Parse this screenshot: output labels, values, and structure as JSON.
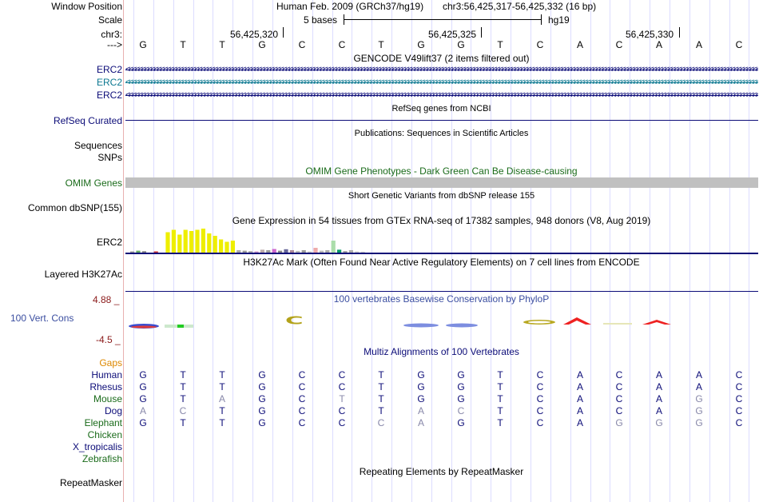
{
  "header": {
    "window_position_label": "Window Position",
    "scale_label": "Scale",
    "chrom_label": "chr3:",
    "strand_label": "--->",
    "assembly": "Human Feb. 2009 (GRCh37/hg19)",
    "position": "chr3:56,425,317-56,425,332 (16 bp)",
    "scale_text": "5 bases",
    "db": "hg19",
    "coords": [
      "56,425,320",
      "56,425,325",
      "56,425,330"
    ]
  },
  "sequence": [
    "G",
    "T",
    "T",
    "G",
    "C",
    "C",
    "T",
    "G",
    "G",
    "T",
    "C",
    "A",
    "C",
    "A",
    "A",
    "C"
  ],
  "tracks": {
    "gencode": {
      "title": "GENCODE V49lift37 (2 items filtered out)",
      "items": [
        {
          "label": "ERC2",
          "color": "#0c0c78"
        },
        {
          "label": "ERC2",
          "color": "#0c7891"
        },
        {
          "label": "ERC2",
          "color": "#0c0c78"
        }
      ]
    },
    "refseq": {
      "title": "RefSeq genes from NCBI",
      "label": "RefSeq Curated"
    },
    "publications": {
      "title": "Publications: Sequences in Scientific Articles",
      "labels": [
        "Sequences",
        "SNPs"
      ]
    },
    "omim": {
      "title": "OMIM Gene Phenotypes - Dark Green Can Be Disease-causing",
      "label": "OMIM Genes"
    },
    "dbsnp": {
      "title": "Short Genetic Variants from dbSNP release 155",
      "label": "Common dbSNP(155)"
    },
    "gtex": {
      "title": "Gene Expression in 54 tissues from GTEx RNA-seq of 17382 samples, 948 donors (V8, Aug 2019)",
      "label": "ERC2"
    },
    "h3k27ac": {
      "title": "H3K27Ac Mark (Often Found Near Active Regulatory Elements) on 7 cell lines from ENCODE",
      "label": "Layered H3K27Ac"
    },
    "cons": {
      "title": "100 vertebrates Basewise Conservation by PhyloP",
      "label": "100 Vert. Cons",
      "max": "4.88 _",
      "min": "-4.5 _"
    },
    "multiz": {
      "title": "Multiz Alignments of 100 Vertebrates",
      "gaps_label": "Gaps",
      "species": [
        {
          "name": "Human",
          "color": "#0c0c78",
          "bases": [
            "G",
            "T",
            "T",
            "G",
            "C",
            "C",
            "T",
            "G",
            "G",
            "T",
            "C",
            "A",
            "C",
            "A",
            "A",
            "C"
          ]
        },
        {
          "name": "Rhesus",
          "color": "#0c0c78",
          "bases": [
            "G",
            "T",
            "T",
            "G",
            "C",
            "C",
            "T",
            "G",
            "G",
            "T",
            "C",
            "A",
            "C",
            "A",
            "A",
            "C"
          ]
        },
        {
          "name": "Mouse",
          "color": "#1a6b1a",
          "bases": [
            "G",
            "T",
            "A",
            "G",
            "C",
            "T",
            "T",
            "G",
            "G",
            "T",
            "C",
            "A",
            "C",
            "A",
            "G",
            "C"
          ]
        },
        {
          "name": "Dog",
          "color": "#0c0c78",
          "bases": [
            "A",
            "C",
            "T",
            "G",
            "C",
            "C",
            "T",
            "A",
            "C",
            "T",
            "C",
            "A",
            "C",
            "A",
            "G",
            "C"
          ]
        },
        {
          "name": "Elephant",
          "color": "#1a6b1a",
          "bases": [
            "G",
            "T",
            "T",
            "G",
            "C",
            "C",
            "C",
            "A",
            "G",
            "T",
            "C",
            "A",
            "G",
            "G",
            "G",
            "C"
          ]
        },
        {
          "name": "Chicken",
          "color": "#1a6b1a",
          "bases": []
        },
        {
          "name": "X_tropicalis",
          "color": "#0c0c78",
          "bases": []
        },
        {
          "name": "Zebrafish",
          "color": "#1a6b1a",
          "bases": []
        }
      ]
    },
    "repeatmasker": {
      "title": "Repeating Elements by RepeatMasker",
      "label": "RepeatMasker"
    }
  },
  "gtex_values": [
    {
      "v": 0.05,
      "c": "#999999"
    },
    {
      "v": 0.08,
      "c": "#66aa66"
    },
    {
      "v": 0.06,
      "c": "#888888"
    },
    {
      "v": 0.0,
      "c": "#ffffff"
    },
    {
      "v": 0.05,
      "c": "#cc3333"
    },
    {
      "v": 0.0,
      "c": "#ffffff"
    },
    {
      "v": 0.85,
      "c": "#eeee00"
    },
    {
      "v": 0.95,
      "c": "#eeee00"
    },
    {
      "v": 0.75,
      "c": "#eeee00"
    },
    {
      "v": 0.95,
      "c": "#eeee00"
    },
    {
      "v": 0.9,
      "c": "#eeee00"
    },
    {
      "v": 0.95,
      "c": "#eeee00"
    },
    {
      "v": 1.0,
      "c": "#eeee00"
    },
    {
      "v": 0.8,
      "c": "#eeee00"
    },
    {
      "v": 0.7,
      "c": "#eeee00"
    },
    {
      "v": 0.55,
      "c": "#eeee00"
    },
    {
      "v": 0.45,
      "c": "#eeee00"
    },
    {
      "v": 0.5,
      "c": "#eeee00"
    },
    {
      "v": 0.1,
      "c": "#aaaaaa"
    },
    {
      "v": 0.08,
      "c": "#999999"
    },
    {
      "v": 0.06,
      "c": "#aaaaaa"
    },
    {
      "v": 0.05,
      "c": "#cc99cc"
    },
    {
      "v": 0.12,
      "c": "#bbaaaa"
    },
    {
      "v": 0.1,
      "c": "#999999"
    },
    {
      "v": 0.15,
      "c": "#cc66cc"
    },
    {
      "v": 0.08,
      "c": "#888888"
    },
    {
      "v": 0.14,
      "c": "#666699"
    },
    {
      "v": 0.1,
      "c": "#aa8899"
    },
    {
      "v": 0.07,
      "c": "#bbbbbb"
    },
    {
      "v": 0.1,
      "c": "#999999"
    },
    {
      "v": 0.05,
      "c": "#cccccc"
    },
    {
      "v": 0.2,
      "c": "#eeaaaa"
    },
    {
      "v": 0.08,
      "c": "#bbbbbb"
    },
    {
      "v": 0.1,
      "c": "#aaaaaa"
    },
    {
      "v": 0.5,
      "c": "#aaddaa"
    },
    {
      "v": 0.12,
      "c": "#009966"
    },
    {
      "v": 0.06,
      "c": "#999999"
    },
    {
      "v": 0.1,
      "c": "#aaaaaa"
    },
    {
      "v": 0.05,
      "c": "#cccccc"
    },
    {
      "v": 0.04,
      "c": "#cccccc"
    }
  ],
  "colors": {
    "navy": "#0c0c78",
    "teal": "#0c7891",
    "omim_green": "#1a6b1a",
    "cons_blue": "#3b4ea0",
    "gaps_orange": "#dd8800",
    "cons_min_red": "#8b1a1a"
  }
}
